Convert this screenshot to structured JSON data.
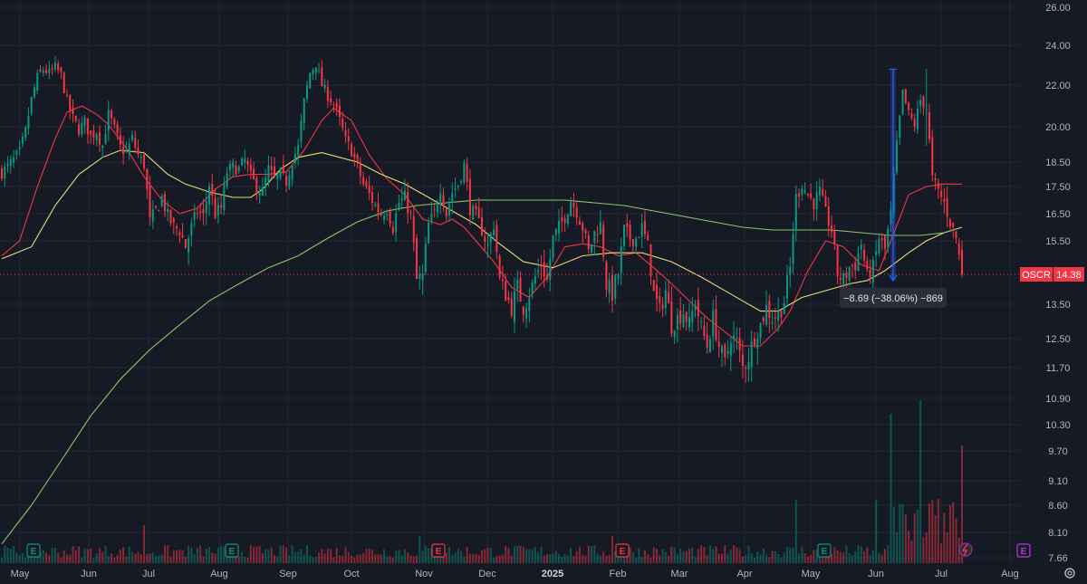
{
  "chart_data": {
    "type": "candlestick",
    "symbol": "OSCR",
    "last_price": "14.38",
    "last_value": 14.38,
    "y_ticks": [
      {
        "label": "26.00",
        "value": 26.0
      },
      {
        "label": "24.00",
        "value": 24.0
      },
      {
        "label": "22.00",
        "value": 22.0
      },
      {
        "label": "20.00",
        "value": 20.0
      },
      {
        "label": "18.50",
        "value": 18.5
      },
      {
        "label": "17.50",
        "value": 17.5
      },
      {
        "label": "16.50",
        "value": 16.5
      },
      {
        "label": "15.50",
        "value": 15.5
      },
      {
        "label": "14.38",
        "value": 14.38
      },
      {
        "label": "13.50",
        "value": 13.5
      },
      {
        "label": "12.50",
        "value": 12.5
      },
      {
        "label": "11.70",
        "value": 11.7
      },
      {
        "label": "10.90",
        "value": 10.9
      },
      {
        "label": "10.30",
        "value": 10.3
      },
      {
        "label": "9.70",
        "value": 9.7
      },
      {
        "label": "9.10",
        "value": 9.1
      },
      {
        "label": "8.60",
        "value": 8.6
      },
      {
        "label": "8.10",
        "value": 8.1
      },
      {
        "label": "7.66",
        "value": 7.66
      }
    ],
    "x_ticks": [
      {
        "label": "May",
        "bold": false
      },
      {
        "label": "Jun",
        "bold": false
      },
      {
        "label": "Jul",
        "bold": false
      },
      {
        "label": "Aug",
        "bold": false
      },
      {
        "label": "Sep",
        "bold": false
      },
      {
        "label": "Oct",
        "bold": false
      },
      {
        "label": "Nov",
        "bold": false
      },
      {
        "label": "Dec",
        "bold": false
      },
      {
        "label": "2025",
        "bold": true
      },
      {
        "label": "Feb",
        "bold": false
      },
      {
        "label": "Mar",
        "bold": false
      },
      {
        "label": "Apr",
        "bold": false
      },
      {
        "label": "May",
        "bold": false
      },
      {
        "label": "Jun",
        "bold": false
      },
      {
        "label": "Jul",
        "bold": false
      },
      {
        "label": "Aug",
        "bold": false
      }
    ],
    "close_series": [
      [
        0,
        18.1
      ],
      [
        2,
        18.3
      ],
      [
        4,
        18.6
      ],
      [
        6,
        18.9
      ],
      [
        8,
        19.8
      ],
      [
        10,
        21.3
      ],
      [
        12,
        22.4
      ],
      [
        14,
        22.8
      ],
      [
        16,
        22.6
      ],
      [
        18,
        22.9
      ],
      [
        20,
        22.5
      ],
      [
        22,
        21.2
      ],
      [
        24,
        20.4
      ],
      [
        26,
        19.9
      ],
      [
        28,
        20.2
      ],
      [
        30,
        19.6
      ],
      [
        32,
        19.8
      ],
      [
        34,
        19.2
      ],
      [
        36,
        20.6
      ],
      [
        38,
        19.9
      ],
      [
        40,
        19.1
      ],
      [
        42,
        18.9
      ],
      [
        44,
        19.5
      ],
      [
        46,
        18.8
      ],
      [
        48,
        18.4
      ],
      [
        50,
        16.2
      ],
      [
        52,
        16.6
      ],
      [
        54,
        17.1
      ],
      [
        56,
        16.4
      ],
      [
        58,
        16.0
      ],
      [
        60,
        15.9
      ],
      [
        62,
        15.3
      ],
      [
        64,
        16.0
      ],
      [
        66,
        16.6
      ],
      [
        68,
        16.4
      ],
      [
        70,
        17.6
      ],
      [
        72,
        16.5
      ],
      [
        74,
        16.7
      ],
      [
        76,
        18.1
      ],
      [
        78,
        18.3
      ],
      [
        80,
        18.2
      ],
      [
        82,
        18.6
      ],
      [
        84,
        17.9
      ],
      [
        86,
        17.5
      ],
      [
        88,
        17.3
      ],
      [
        90,
        18.2
      ],
      [
        92,
        17.8
      ],
      [
        94,
        18.0
      ],
      [
        96,
        17.7
      ],
      [
        98,
        18.6
      ],
      [
        100,
        19.1
      ],
      [
        102,
        21.2
      ],
      [
        104,
        22.6
      ],
      [
        106,
        23.1
      ],
      [
        108,
        22.0
      ],
      [
        110,
        21.5
      ],
      [
        112,
        21.1
      ],
      [
        114,
        20.3
      ],
      [
        116,
        19.4
      ],
      [
        118,
        19.0
      ],
      [
        120,
        18.3
      ],
      [
        122,
        17.6
      ],
      [
        124,
        17.2
      ],
      [
        126,
        16.8
      ],
      [
        128,
        16.5
      ],
      [
        130,
        16.7
      ],
      [
        132,
        16.0
      ],
      [
        134,
        16.9
      ],
      [
        136,
        17.1
      ],
      [
        138,
        16.4
      ],
      [
        140,
        14.2
      ],
      [
        142,
        14.3
      ],
      [
        144,
        16.1
      ],
      [
        146,
        16.5
      ],
      [
        148,
        17.5
      ],
      [
        150,
        16.5
      ],
      [
        152,
        17.3
      ],
      [
        154,
        17.6
      ],
      [
        156,
        18.4
      ],
      [
        158,
        16.7
      ],
      [
        160,
        16.4
      ],
      [
        162,
        15.9
      ],
      [
        164,
        15.3
      ],
      [
        166,
        16.1
      ],
      [
        168,
        14.2
      ],
      [
        170,
        13.8
      ],
      [
        172,
        13.4
      ],
      [
        174,
        14.0
      ],
      [
        176,
        13.4
      ],
      [
        178,
        13.8
      ],
      [
        180,
        14.3
      ],
      [
        182,
        14.7
      ],
      [
        184,
        14.2
      ],
      [
        186,
        15.6
      ],
      [
        188,
        16.0
      ],
      [
        190,
        16.4
      ],
      [
        192,
        17.0
      ],
      [
        194,
        16.6
      ],
      [
        196,
        16.0
      ],
      [
        198,
        15.1
      ],
      [
        200,
        15.8
      ],
      [
        202,
        16.1
      ],
      [
        204,
        14.1
      ],
      [
        206,
        13.8
      ],
      [
        208,
        14.4
      ],
      [
        210,
        15.9
      ],
      [
        212,
        15.6
      ],
      [
        214,
        15.6
      ],
      [
        216,
        16.0
      ],
      [
        218,
        15.3
      ],
      [
        220,
        13.8
      ],
      [
        222,
        13.3
      ],
      [
        224,
        13.9
      ],
      [
        226,
        12.9
      ],
      [
        228,
        13.1
      ],
      [
        230,
        13.3
      ],
      [
        232,
        12.9
      ],
      [
        234,
        13.6
      ],
      [
        236,
        12.8
      ],
      [
        238,
        12.3
      ],
      [
        240,
        13.1
      ],
      [
        242,
        12.3
      ],
      [
        244,
        11.8
      ],
      [
        246,
        12.6
      ],
      [
        248,
        12.4
      ],
      [
        250,
        11.7
      ],
      [
        252,
        12.0
      ],
      [
        254,
        12.6
      ],
      [
        256,
        12.9
      ],
      [
        258,
        13.4
      ],
      [
        260,
        13.1
      ],
      [
        262,
        13.2
      ],
      [
        264,
        13.6
      ],
      [
        266,
        14.6
      ],
      [
        268,
        17.1
      ],
      [
        270,
        17.6
      ],
      [
        272,
        17.2
      ],
      [
        274,
        16.9
      ],
      [
        276,
        17.3
      ],
      [
        278,
        16.5
      ],
      [
        280,
        15.9
      ],
      [
        282,
        14.4
      ],
      [
        284,
        14.2
      ],
      [
        286,
        14.6
      ],
      [
        288,
        14.7
      ],
      [
        290,
        15.4
      ],
      [
        292,
        14.3
      ],
      [
        294,
        14.6
      ],
      [
        296,
        15.6
      ],
      [
        298,
        15.2
      ],
      [
        300,
        16.5
      ],
      [
        302,
        19.2
      ],
      [
        304,
        21.6
      ],
      [
        306,
        20.6
      ],
      [
        308,
        20.1
      ],
      [
        310,
        21.3
      ],
      [
        312,
        20.9
      ],
      [
        314,
        17.8
      ],
      [
        316,
        17.3
      ],
      [
        318,
        16.9
      ],
      [
        320,
        16.2
      ],
      [
        322,
        15.6
      ],
      [
        324,
        14.38
      ]
    ],
    "moving_averages": [
      {
        "color": "#f23645",
        "points": [
          [
            0,
            15.0
          ],
          [
            6,
            15.5
          ],
          [
            12,
            17.5
          ],
          [
            18,
            19.5
          ],
          [
            22,
            20.7
          ],
          [
            27,
            21.0
          ],
          [
            32,
            20.6
          ],
          [
            36,
            20.1
          ],
          [
            42,
            19.1
          ],
          [
            48,
            17.9
          ],
          [
            54,
            17.0
          ],
          [
            60,
            16.5
          ],
          [
            66,
            16.7
          ],
          [
            72,
            17.4
          ],
          [
            78,
            17.9
          ],
          [
            84,
            18.0
          ],
          [
            90,
            18.0
          ],
          [
            96,
            18.1
          ],
          [
            102,
            19.0
          ],
          [
            108,
            20.3
          ],
          [
            112,
            20.9
          ],
          [
            118,
            20.3
          ],
          [
            124,
            18.8
          ],
          [
            130,
            17.8
          ],
          [
            136,
            17.2
          ],
          [
            142,
            16.3
          ],
          [
            148,
            16.1
          ],
          [
            152,
            16.3
          ],
          [
            156,
            16.0
          ],
          [
            160,
            15.5
          ],
          [
            166,
            14.8
          ],
          [
            172,
            14.0
          ],
          [
            178,
            13.7
          ],
          [
            184,
            14.3
          ],
          [
            190,
            15.3
          ],
          [
            196,
            15.4
          ],
          [
            202,
            15.3
          ],
          [
            208,
            15.0
          ],
          [
            214,
            15.1
          ],
          [
            220,
            14.6
          ],
          [
            226,
            14.1
          ],
          [
            232,
            13.6
          ],
          [
            238,
            13.1
          ],
          [
            244,
            12.7
          ],
          [
            250,
            12.3
          ],
          [
            256,
            12.3
          ],
          [
            262,
            12.8
          ],
          [
            266,
            13.3
          ],
          [
            272,
            14.5
          ],
          [
            278,
            15.5
          ],
          [
            284,
            15.3
          ],
          [
            290,
            14.7
          ],
          [
            296,
            14.5
          ],
          [
            300,
            15.5
          ],
          [
            306,
            17.2
          ],
          [
            312,
            17.5
          ],
          [
            318,
            17.6
          ],
          [
            324,
            17.6
          ]
        ]
      },
      {
        "color": "#e8dc7c",
        "points": [
          [
            0,
            14.9
          ],
          [
            10,
            15.3
          ],
          [
            18,
            16.8
          ],
          [
            26,
            18.0
          ],
          [
            34,
            18.7
          ],
          [
            40,
            19.0
          ],
          [
            48,
            18.9
          ],
          [
            56,
            18.0
          ],
          [
            62,
            17.6
          ],
          [
            70,
            17.3
          ],
          [
            78,
            17.1
          ],
          [
            84,
            17.1
          ],
          [
            88,
            17.4
          ],
          [
            94,
            18.2
          ],
          [
            100,
            18.7
          ],
          [
            108,
            18.9
          ],
          [
            114,
            18.7
          ],
          [
            120,
            18.5
          ],
          [
            128,
            18.0
          ],
          [
            136,
            17.6
          ],
          [
            144,
            17.1
          ],
          [
            152,
            16.6
          ],
          [
            160,
            16.1
          ],
          [
            168,
            15.4
          ],
          [
            176,
            14.8
          ],
          [
            186,
            14.6
          ],
          [
            196,
            15.0
          ],
          [
            206,
            15.1
          ],
          [
            216,
            15.1
          ],
          [
            226,
            14.8
          ],
          [
            236,
            14.3
          ],
          [
            246,
            13.8
          ],
          [
            256,
            13.3
          ],
          [
            262,
            13.3
          ],
          [
            270,
            13.7
          ],
          [
            278,
            13.9
          ],
          [
            286,
            14.1
          ],
          [
            292,
            14.2
          ],
          [
            298,
            14.5
          ],
          [
            306,
            15.1
          ],
          [
            312,
            15.5
          ],
          [
            318,
            15.8
          ],
          [
            324,
            16.0
          ]
        ]
      },
      {
        "color": "#89c86c",
        "points": [
          [
            0,
            7.9
          ],
          [
            10,
            8.6
          ],
          [
            20,
            9.5
          ],
          [
            30,
            10.5
          ],
          [
            40,
            11.4
          ],
          [
            50,
            12.2
          ],
          [
            60,
            12.9
          ],
          [
            70,
            13.6
          ],
          [
            80,
            14.1
          ],
          [
            90,
            14.6
          ],
          [
            100,
            15.0
          ],
          [
            110,
            15.6
          ],
          [
            120,
            16.2
          ],
          [
            130,
            16.6
          ],
          [
            140,
            16.8
          ],
          [
            150,
            16.9
          ],
          [
            160,
            17.0
          ],
          [
            170,
            17.0
          ],
          [
            180,
            17.0
          ],
          [
            190,
            17.0
          ],
          [
            200,
            16.9
          ],
          [
            210,
            16.8
          ],
          [
            220,
            16.6
          ],
          [
            230,
            16.4
          ],
          [
            240,
            16.2
          ],
          [
            250,
            16.0
          ],
          [
            260,
            15.9
          ],
          [
            270,
            15.9
          ],
          [
            280,
            15.9
          ],
          [
            290,
            15.8
          ],
          [
            300,
            15.7
          ],
          [
            310,
            15.7
          ],
          [
            318,
            15.8
          ],
          [
            324,
            16.0
          ]
        ]
      }
    ],
    "events": [
      {
        "label": "E",
        "bar": 14,
        "color": "#089981"
      },
      {
        "label": "E",
        "bar": 101,
        "color": "#089981"
      },
      {
        "label": "E",
        "bar": 193,
        "color": "#f23645"
      },
      {
        "label": "E",
        "bar": 280,
        "color": "#f23645"
      },
      {
        "label": "E",
        "bar": 368,
        "color": "#089981"
      },
      {
        "label": "E",
        "bar": 460,
        "color": "#b33ddb"
      }
    ],
    "measurement": {
      "label": "−8.69 (−38.06%) −869",
      "from_value": 22.8,
      "to_value": 14.2,
      "bar": 289
    },
    "up_color": "#089981",
    "down_color": "#f23645"
  }
}
